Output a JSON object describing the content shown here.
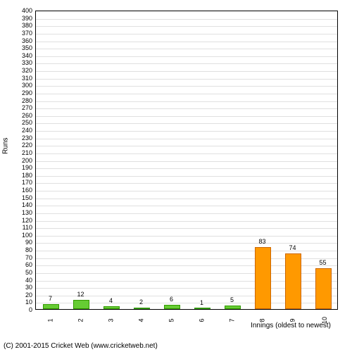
{
  "chart": {
    "type": "bar",
    "ylabel": "Runs",
    "xlabel": "Innings (oldest to newest)",
    "ylim": [
      0,
      400
    ],
    "ytick_step": 10,
    "background_color": "#ffffff",
    "grid_color": "#e0e0e0",
    "border_color": "#000000",
    "bar_width_ratio": 0.55,
    "categories": [
      "1",
      "2",
      "3",
      "4",
      "5",
      "6",
      "7",
      "8",
      "9",
      "10"
    ],
    "values": [
      7,
      12,
      4,
      2,
      6,
      1,
      5,
      83,
      74,
      55
    ],
    "bar_colors": [
      "#66cc33",
      "#66cc33",
      "#66cc33",
      "#66cc33",
      "#66cc33",
      "#66cc33",
      "#66cc33",
      "#ff9900",
      "#ff9900",
      "#ff9900"
    ],
    "bar_border_colors": [
      "#339900",
      "#339900",
      "#339900",
      "#339900",
      "#339900",
      "#339900",
      "#339900",
      "#cc6600",
      "#cc6600",
      "#cc6600"
    ],
    "label_fontsize": 9
  },
  "copyright": "(C) 2001-2015 Cricket Web (www.cricketweb.net)"
}
